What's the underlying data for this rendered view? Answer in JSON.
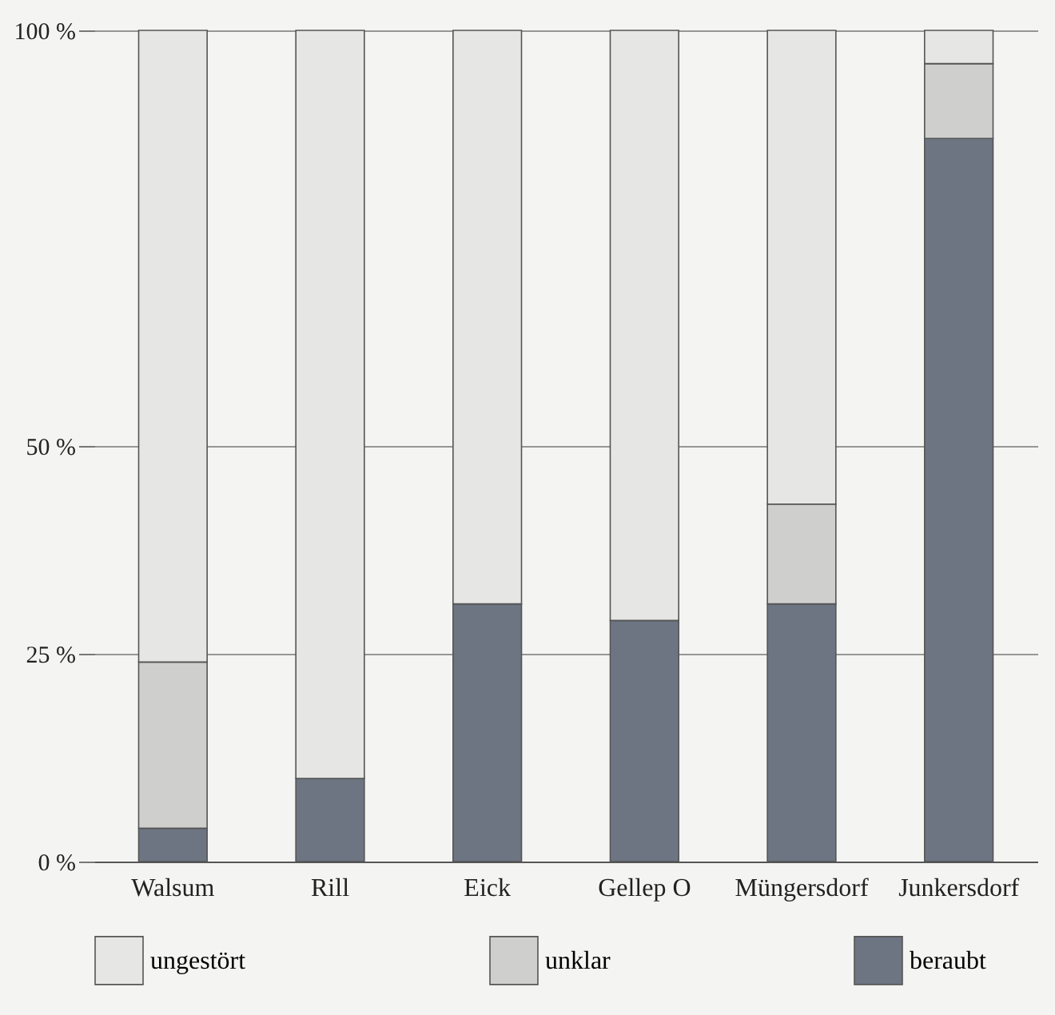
{
  "chart_data": {
    "type": "bar",
    "stacked": true,
    "categories": [
      "Walsum",
      "Rill",
      "Eick",
      "Gellep O",
      "Müngersdorf",
      "Junkersdorf"
    ],
    "series": [
      {
        "name": "beraubt",
        "color": "#6e7582",
        "values": [
          4,
          10,
          31,
          29,
          31,
          87
        ]
      },
      {
        "name": "unklar",
        "color": "#cfcfcd",
        "values": [
          20,
          null,
          null,
          null,
          12,
          9
        ]
      },
      {
        "name": "ungestört",
        "color": "#e6e6e4",
        "values": [
          76,
          90,
          69,
          71,
          57,
          4
        ]
      }
    ],
    "ylim": [
      0,
      100
    ],
    "yticks": [
      {
        "value": 0,
        "label": "0 %"
      },
      {
        "value": 25,
        "label": "25 %"
      },
      {
        "value": 50,
        "label": "50 %"
      },
      {
        "value": 100,
        "label": "100 %"
      }
    ],
    "grid": "y",
    "legend": "bottom"
  }
}
